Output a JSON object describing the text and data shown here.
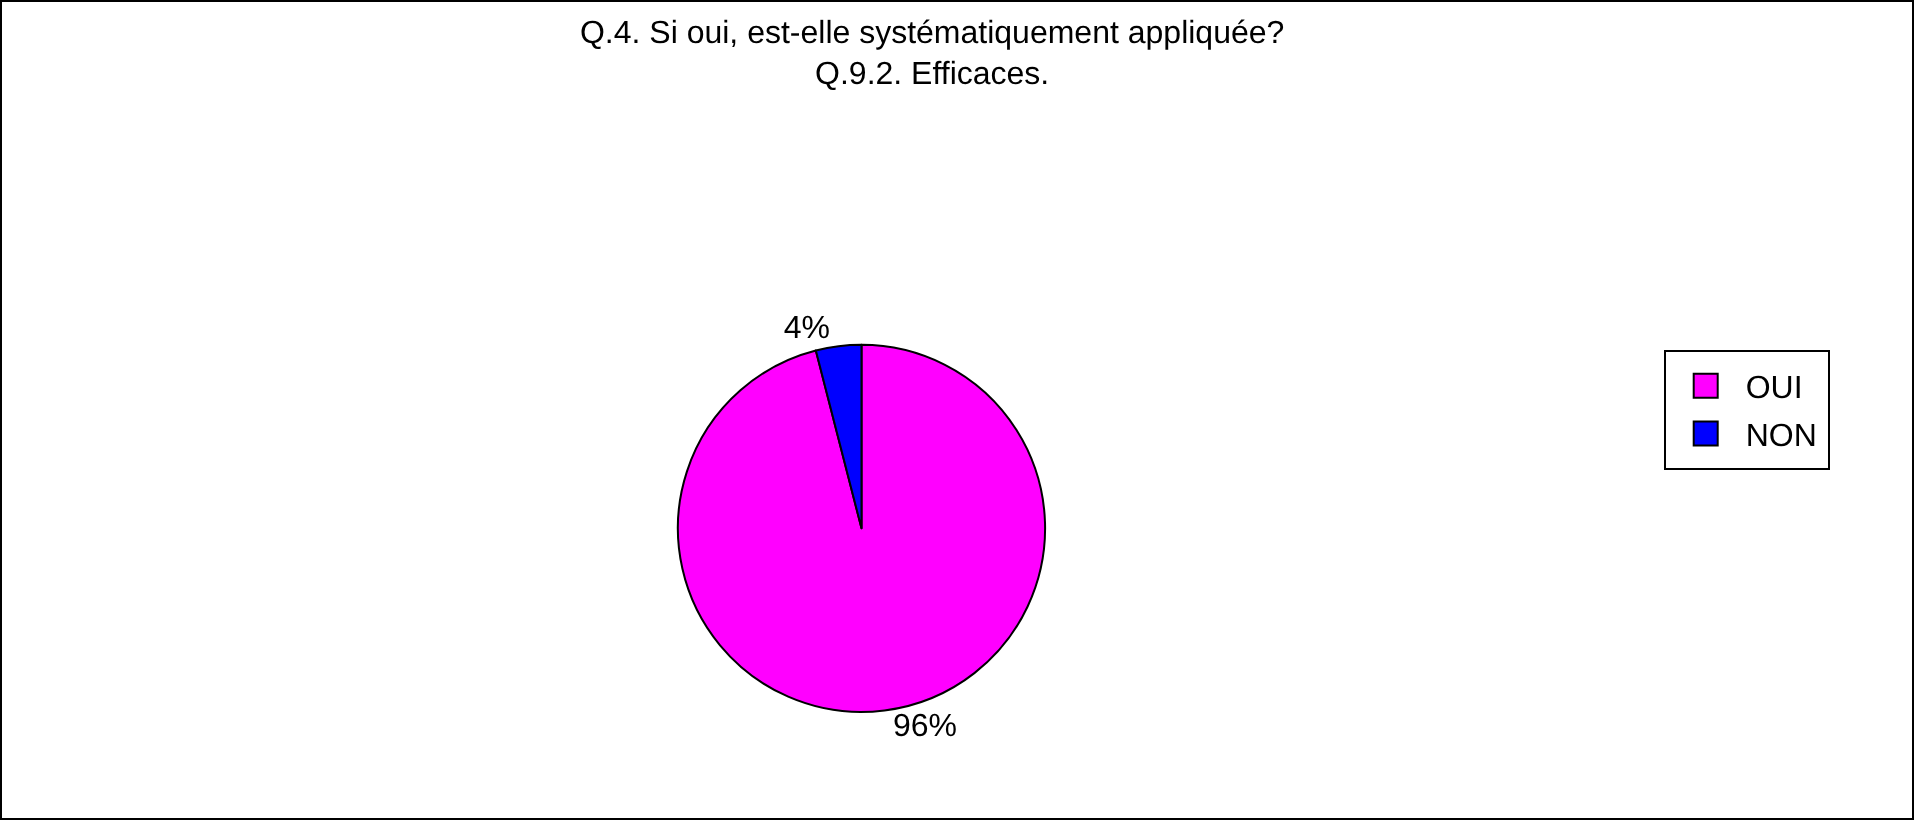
{
  "chart_data": {
    "type": "pie",
    "title": "Q.4. Si oui, est-elle systématiquement appliquée?\nQ.9.2. Efficaces.",
    "categories": [
      "OUI",
      "NON"
    ],
    "values": [
      96,
      4
    ],
    "colors": [
      "#ff00ff",
      "#0000ff"
    ],
    "value_labels": [
      "96%",
      "4%"
    ],
    "legend": "right"
  }
}
